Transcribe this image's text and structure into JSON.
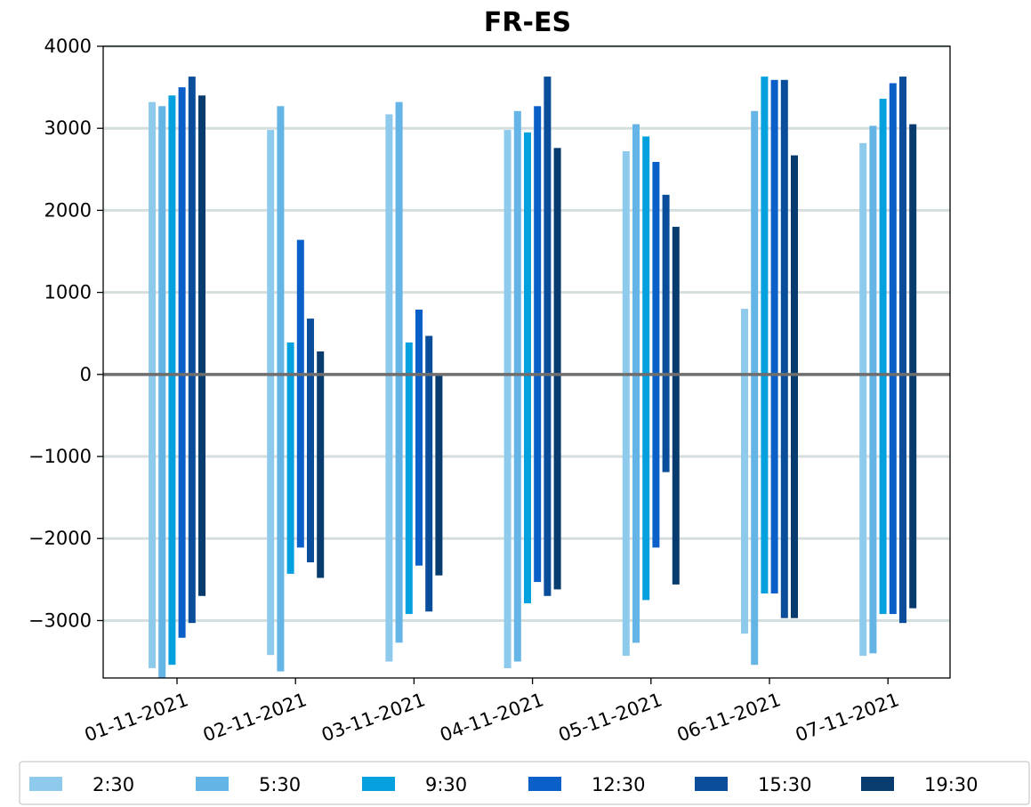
{
  "chart_data": {
    "type": "bar",
    "title": "FR-ES",
    "xlabel": "",
    "ylabel": "",
    "categories": [
      "01-11-2021",
      "02-11-2021",
      "03-11-2021",
      "04-11-2021",
      "05-11-2021",
      "06-11-2021",
      "07-11-2021"
    ],
    "ylim": [
      -3700,
      4000
    ],
    "yticks": [
      4000,
      3000,
      2000,
      1000,
      0,
      -1000,
      -2000,
      -3000
    ],
    "ytick_labels": [
      "4000",
      "3000",
      "2000",
      "1000",
      "0",
      "−1000",
      "−2000",
      "−3000"
    ],
    "grid": "horizontal",
    "zero_line": true,
    "legend_placement": "bottom",
    "series": [
      {
        "name": "2:30",
        "color": "#8ecaec",
        "max": [
          3320,
          2980,
          3170,
          2980,
          2720,
          800,
          2820
        ],
        "min": [
          -3580,
          -3420,
          -3500,
          -3580,
          -3430,
          -3160,
          -3430
        ]
      },
      {
        "name": "5:30",
        "color": "#64b4e6",
        "max": [
          3270,
          3270,
          3320,
          3210,
          3050,
          3210,
          3030
        ],
        "min": [
          -3700,
          -3620,
          -3270,
          -3500,
          -3270,
          -3540,
          -3400
        ]
      },
      {
        "name": "9:30",
        "color": "#05a0de",
        "max": [
          3400,
          390,
          390,
          2950,
          2900,
          3630,
          3360
        ],
        "min": [
          -3540,
          -2430,
          -2920,
          -2790,
          -2750,
          -2670,
          -2920
        ]
      },
      {
        "name": "12:30",
        "color": "#0a5fc8",
        "max": [
          3500,
          1640,
          790,
          3270,
          2590,
          3590,
          3550
        ],
        "min": [
          -3210,
          -2110,
          -2330,
          -2530,
          -2110,
          -2670,
          -2920
        ]
      },
      {
        "name": "15:30",
        "color": "#0a4d9a",
        "max": [
          3630,
          680,
          470,
          3630,
          2190,
          3590,
          3630
        ],
        "min": [
          -3030,
          -2290,
          -2890,
          -2700,
          -1190,
          -2970,
          -3030
        ]
      },
      {
        "name": "19:30",
        "color": "#083b6e",
        "max": [
          3400,
          280,
          0,
          2760,
          1800,
          2670,
          3050
        ],
        "min": [
          -2700,
          -2480,
          -2450,
          -2620,
          -2560,
          -2970,
          -2850
        ]
      }
    ]
  }
}
